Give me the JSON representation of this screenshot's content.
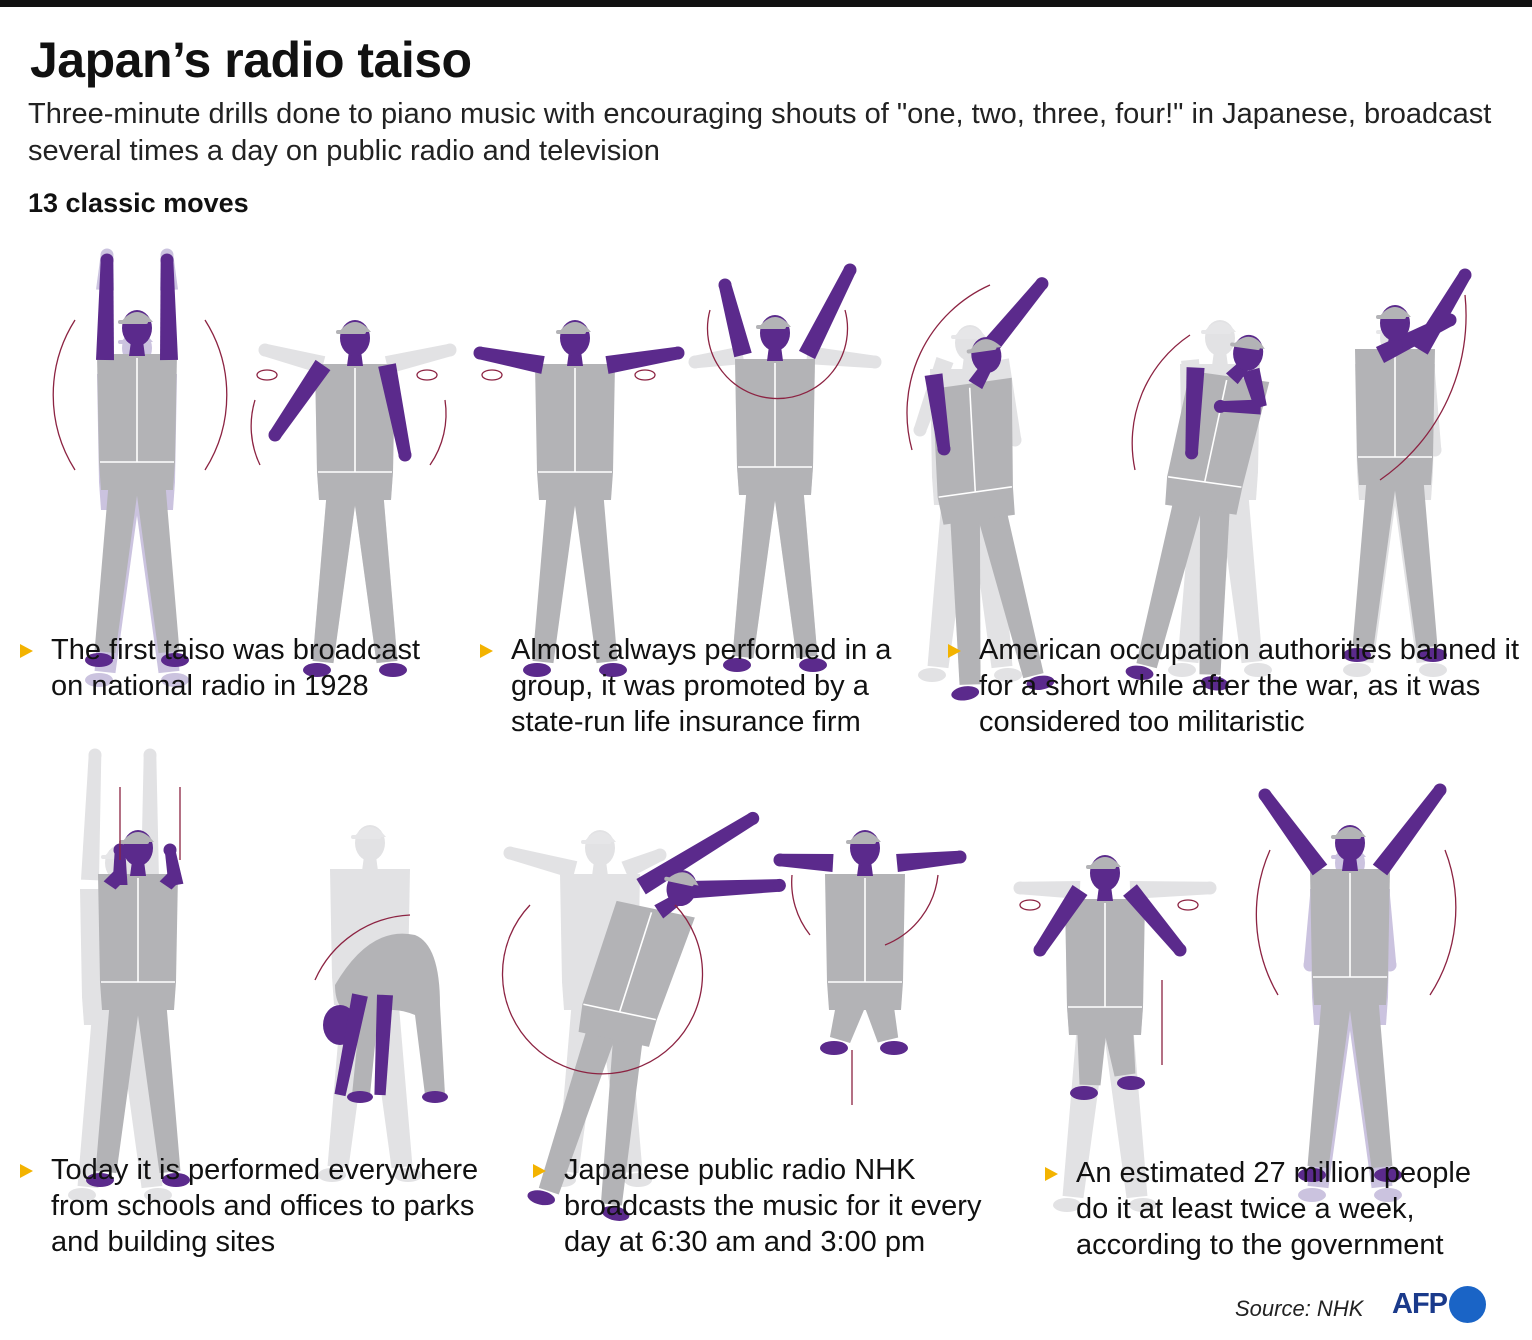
{
  "header": {
    "title": "Japan’s radio taiso",
    "subtitle": "Three-minute drills done to piano music with encouraging shouts of \"one, two, three, four!\" in Japanese, broadcast several times a day on public radio and television",
    "section_label": "13 classic moves"
  },
  "facts": [
    "The first taiso was broadcast on national radio in 1928",
    "Almost always performed in a group, it was promoted by a state-run life insurance firm",
    "American occupation authorities banned it for a short while after the war, as it was considered too militaristic",
    "Today it is performed everywhere from  schools and offices to parks and building sites",
    "Japanese public radio NHK broadcasts the music for it every day at 6:30 am and 3:00 pm",
    "An estimated 27 million people do it at least twice a week, according to the government"
  ],
  "footer": {
    "source": "Source: NHK",
    "logo": "AFP"
  },
  "colors": {
    "accent_purple": "#5b2a8c",
    "figure_grey": "#b3b3b6",
    "bullet_yellow": "#f3b300",
    "arrow_red": "#8c2342",
    "afp_blue": "#1a3a8b"
  }
}
